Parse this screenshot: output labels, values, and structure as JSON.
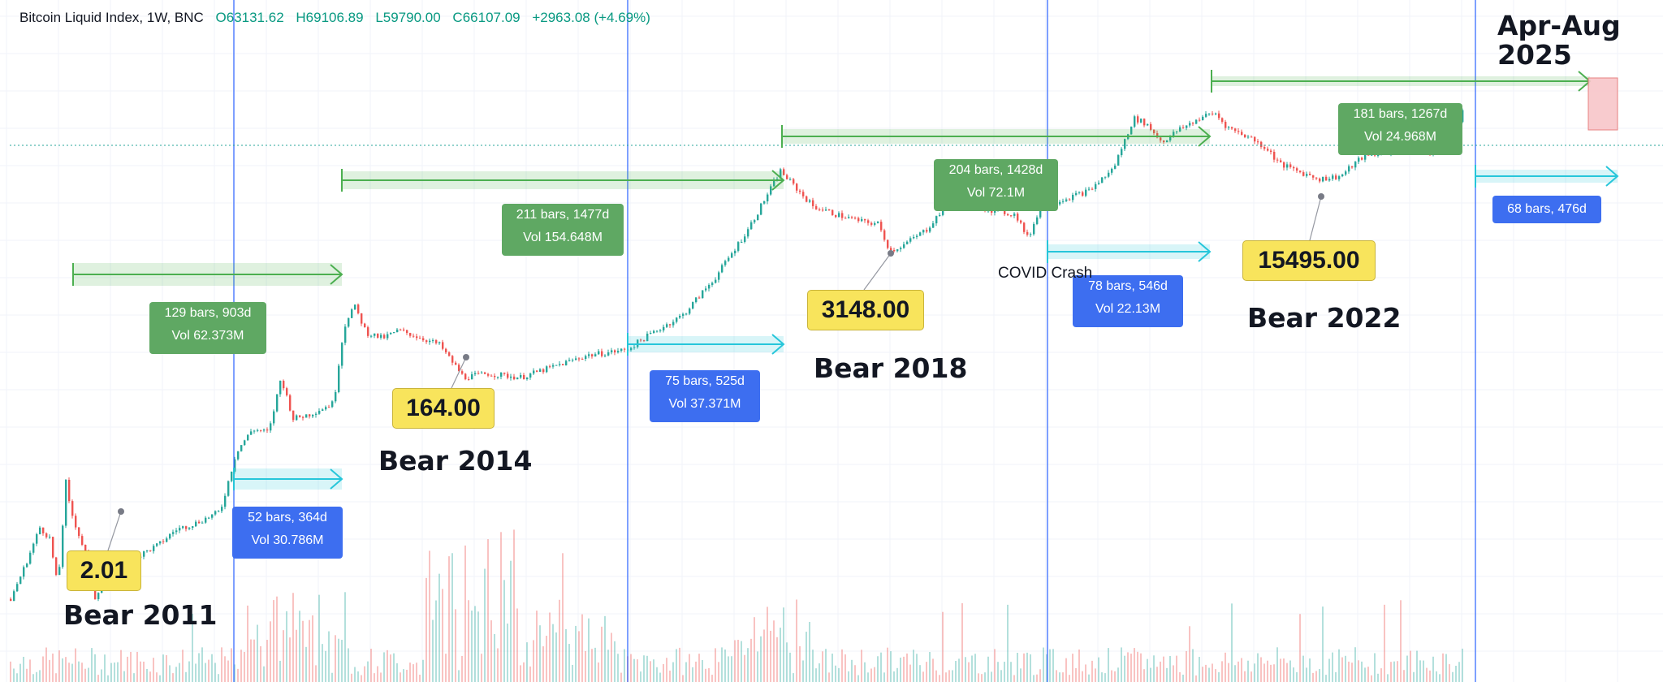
{
  "header": {
    "symbol": "Bitcoin Liquid Index, 1W, BNC",
    "open": "O63131.62",
    "high": "H69106.89",
    "low": "L59790.00",
    "close": "C66107.09",
    "change": "+2963.08 (+4.69%)"
  },
  "chart_data": {
    "type": "candlestick",
    "title": "Bitcoin Liquid Index, 1W, BNC",
    "scale": "log",
    "grid": true,
    "price_path": [
      {
        "x": 12,
        "y": 2.2
      },
      {
        "x": 30,
        "y": 4.5
      },
      {
        "x": 48,
        "y": 10
      },
      {
        "x": 60,
        "y": 8
      },
      {
        "x": 70,
        "y": 2.8
      },
      {
        "x": 80,
        "y": 26
      },
      {
        "x": 85,
        "y": 15
      },
      {
        "x": 95,
        "y": 9
      },
      {
        "x": 105,
        "y": 5.5
      },
      {
        "x": 115,
        "y": 2.2
      },
      {
        "x": 130,
        "y": 3.8
      },
      {
        "x": 150,
        "y": 5
      },
      {
        "x": 170,
        "y": 5.5
      },
      {
        "x": 195,
        "y": 7
      },
      {
        "x": 215,
        "y": 9.5
      },
      {
        "x": 240,
        "y": 11
      },
      {
        "x": 270,
        "y": 14
      },
      {
        "x": 290,
        "y": 50
      },
      {
        "x": 310,
        "y": 80
      },
      {
        "x": 330,
        "y": 75
      },
      {
        "x": 345,
        "y": 240
      },
      {
        "x": 360,
        "y": 100
      },
      {
        "x": 380,
        "y": 110
      },
      {
        "x": 410,
        "y": 140
      },
      {
        "x": 418,
        "y": 430
      },
      {
        "x": 425,
        "y": 800
      },
      {
        "x": 435,
        "y": 1100
      },
      {
        "x": 450,
        "y": 620
      },
      {
        "x": 470,
        "y": 550
      },
      {
        "x": 490,
        "y": 650
      },
      {
        "x": 510,
        "y": 580
      },
      {
        "x": 540,
        "y": 480
      },
      {
        "x": 570,
        "y": 240
      },
      {
        "x": 600,
        "y": 260
      },
      {
        "x": 640,
        "y": 240
      },
      {
        "x": 680,
        "y": 300
      },
      {
        "x": 720,
        "y": 380
      },
      {
        "x": 770,
        "y": 430
      },
      {
        "x": 800,
        "y": 600
      },
      {
        "x": 840,
        "y": 900
      },
      {
        "x": 880,
        "y": 2000
      },
      {
        "x": 920,
        "y": 5500
      },
      {
        "x": 960,
        "y": 19000
      },
      {
        "x": 980,
        "y": 13000
      },
      {
        "x": 1000,
        "y": 9000
      },
      {
        "x": 1030,
        "y": 7500
      },
      {
        "x": 1060,
        "y": 6500
      },
      {
        "x": 1080,
        "y": 6200
      },
      {
        "x": 1095,
        "y": 3500
      },
      {
        "x": 1110,
        "y": 3900
      },
      {
        "x": 1140,
        "y": 5500
      },
      {
        "x": 1170,
        "y": 10500
      },
      {
        "x": 1200,
        "y": 9000
      },
      {
        "x": 1230,
        "y": 8000
      },
      {
        "x": 1250,
        "y": 7500
      },
      {
        "x": 1265,
        "y": 4500
      },
      {
        "x": 1280,
        "y": 9000
      },
      {
        "x": 1310,
        "y": 10500
      },
      {
        "x": 1340,
        "y": 12500
      },
      {
        "x": 1370,
        "y": 20000
      },
      {
        "x": 1395,
        "y": 58000
      },
      {
        "x": 1410,
        "y": 52000
      },
      {
        "x": 1430,
        "y": 35000
      },
      {
        "x": 1450,
        "y": 45000
      },
      {
        "x": 1480,
        "y": 60000
      },
      {
        "x": 1495,
        "y": 65000
      },
      {
        "x": 1510,
        "y": 48000
      },
      {
        "x": 1540,
        "y": 38000
      },
      {
        "x": 1560,
        "y": 30000
      },
      {
        "x": 1575,
        "y": 22000
      },
      {
        "x": 1600,
        "y": 18500
      },
      {
        "x": 1625,
        "y": 16000
      },
      {
        "x": 1650,
        "y": 17000
      },
      {
        "x": 1675,
        "y": 25000
      },
      {
        "x": 1700,
        "y": 28000
      },
      {
        "x": 1730,
        "y": 30000
      },
      {
        "x": 1760,
        "y": 28500
      },
      {
        "x": 1790,
        "y": 42000
      },
      {
        "x": 1800,
        "y": 69000
      }
    ],
    "annotations": {
      "bear_lows": [
        {
          "value": "2.01",
          "label": "Bear 2011"
        },
        {
          "value": "164.00",
          "label": "Bear 2014"
        },
        {
          "value": "3148.00",
          "label": "Bear 2018"
        },
        {
          "value": "15495.00",
          "label": "Bear 2022"
        }
      ],
      "bull_ranges": [
        {
          "bars": "129 bars, 903d",
          "vol": "Vol 62.373M"
        },
        {
          "bars": "211 bars, 1477d",
          "vol": "Vol 154.648M"
        },
        {
          "bars": "204 bars, 1428d",
          "vol": "Vol 72.1M"
        },
        {
          "bars": "181 bars, 1267d",
          "vol": "Vol 24.968M"
        }
      ],
      "recovery_ranges": [
        {
          "bars": "52 bars, 364d",
          "vol": "Vol 30.786M"
        },
        {
          "bars": "75 bars, 525d",
          "vol": "Vol 37.371M"
        },
        {
          "bars": "78 bars, 546d",
          "vol": "Vol 22.13M"
        },
        {
          "bars": "68 bars, 476d",
          "vol": ""
        }
      ],
      "covid_label": "COVID Crash",
      "target_label_line1": "Apr-Aug",
      "target_label_line2": "2025"
    }
  },
  "colors": {
    "up": "#26a69a",
    "down": "#ef5350",
    "vline": "#2962ff",
    "green_arrow": "#4caf50",
    "cyan_arrow": "#26c6da"
  }
}
